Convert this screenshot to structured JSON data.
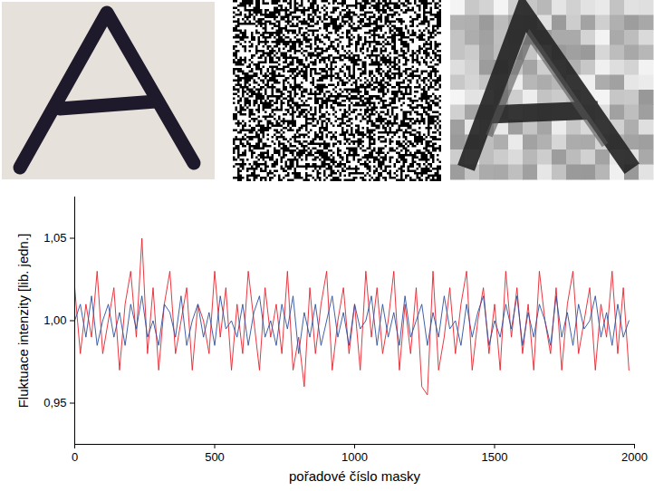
{
  "chart_data": {
    "type": "line",
    "x_label": "pořadové číslo masky",
    "y_label": "Fluktuace intenzity [lib. jedn.]",
    "x": [
      0,
      20,
      40,
      60,
      80,
      100,
      120,
      140,
      160,
      180,
      200,
      220,
      240,
      260,
      280,
      300,
      320,
      340,
      360,
      380,
      400,
      420,
      440,
      460,
      480,
      500,
      520,
      540,
      560,
      580,
      600,
      620,
      640,
      660,
      680,
      700,
      720,
      740,
      760,
      780,
      800,
      820,
      840,
      860,
      880,
      900,
      920,
      940,
      960,
      980,
      1000,
      1020,
      1040,
      1060,
      1080,
      1100,
      1120,
      1140,
      1160,
      1180,
      1200,
      1220,
      1240,
      1260,
      1280,
      1300,
      1320,
      1340,
      1360,
      1380,
      1400,
      1420,
      1440,
      1460,
      1480,
      1500,
      1520,
      1540,
      1560,
      1580,
      1600,
      1620,
      1640,
      1660,
      1680,
      1700,
      1720,
      1740,
      1760,
      1780,
      1800,
      1820,
      1840,
      1860,
      1880,
      1900,
      1920,
      1940,
      1960,
      1980
    ],
    "series": [
      {
        "color": "#e8202a",
        "values": [
          1.02,
          0.98,
          1.01,
          0.99,
          1.03,
          0.98,
          1.0,
          1.02,
          0.97,
          1.01,
          1.03,
          0.99,
          1.05,
          0.98,
          1.02,
          0.97,
          1.01,
          1.03,
          0.98,
          1.0,
          1.02,
          0.97,
          1.01,
          1.0,
          0.98,
          1.03,
          0.99,
          1.02,
          0.97,
          1.01,
          0.98,
          1.03,
          1.0,
          0.97,
          1.02,
          0.99,
          1.01,
          0.98,
          1.03,
          0.97,
          0.99,
          0.96,
          1.02,
          0.98,
          1.01,
          1.03,
          0.97,
          1.0,
          1.02,
          0.98,
          1.01,
          0.97,
          1.03,
          0.99,
          1.02,
          0.98,
          1.0,
          1.03,
          0.97,
          1.01,
          0.98,
          1.02,
          0.96,
          0.955,
          1.03,
          0.97,
          0.99,
          1.02,
          0.98,
          1.01,
          1.03,
          0.97,
          1.0,
          1.02,
          0.98,
          1.01,
          0.97,
          1.03,
          0.99,
          1.02,
          0.98,
          1.01,
          0.97,
          1.03,
          1.0,
          0.98,
          1.02,
          0.97,
          1.01,
          1.03,
          0.98,
          1.0,
          1.02,
          0.97,
          1.01,
          0.99,
          1.03,
          0.98,
          1.02,
          0.97
        ]
      },
      {
        "color": "#2b4f9e",
        "values": [
          1.0,
          1.01,
          0.99,
          1.015,
          0.985,
          1.0,
          1.01,
          0.99,
          1.005,
          0.985,
          1.01,
          0.995,
          1.015,
          0.99,
          1.0,
          0.985,
          1.01,
          1.005,
          0.99,
          1.015,
          0.985,
          1.0,
          1.01,
          0.99,
          1.005,
          0.985,
          1.015,
          0.995,
          1.0,
          0.99,
          1.01,
          0.985,
          1.005,
          1.015,
          0.99,
          1.0,
          0.985,
          1.01,
          0.995,
          1.015,
          0.98,
          1.005,
          0.99,
          1.01,
          0.985,
          1.0,
          1.015,
          0.99,
          1.005,
          0.985,
          1.01,
          0.995,
          1.0,
          1.015,
          0.985,
          1.01,
          0.99,
          1.005,
          0.985,
          1.015,
          0.99,
          1.0,
          1.01,
          0.985,
          1.005,
          0.99,
          1.015,
          0.995,
          1.0,
          0.985,
          1.01,
          0.99,
          1.005,
          1.015,
          0.985,
          1.0,
          0.99,
          1.01,
          0.995,
          1.015,
          0.985,
          1.005,
          0.99,
          1.01,
          1.0,
          0.985,
          1.015,
          0.99,
          1.005,
          0.985,
          1.01,
          0.995,
          1.0,
          1.015,
          0.99,
          1.005,
          0.985,
          1.01,
          0.99,
          1.0
        ]
      }
    ],
    "xlim": [
      0,
      2000
    ],
    "xticks": [
      0,
      500,
      1000,
      1500,
      2000
    ],
    "ylim": [
      0.925,
      1.075
    ],
    "yticks": [
      {
        "value": 0.95,
        "label": "0,95"
      },
      {
        "value": 1.0,
        "label": "1,00"
      },
      {
        "value": 1.05,
        "label": "1,05"
      }
    ],
    "grid": false
  }
}
